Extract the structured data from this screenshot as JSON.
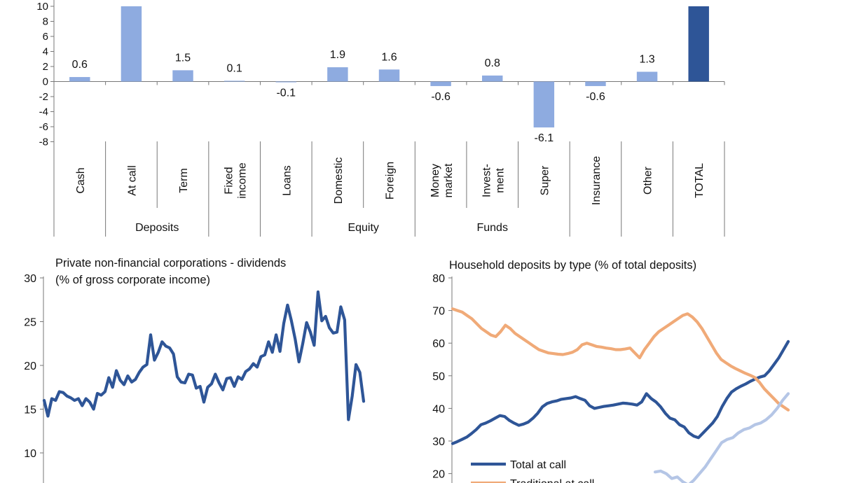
{
  "chart_data": [
    {
      "type": "bar",
      "title": "",
      "yticks": [
        "10",
        "8",
        "6",
        "4",
        "2",
        "0",
        "-2",
        "-4",
        "-6",
        "-8"
      ],
      "ylim": [
        -8,
        10
      ],
      "categories": [
        "Cash",
        "At call",
        "Term",
        "Fixed income",
        "Loans",
        "Domestic",
        "Foreign",
        "Money market",
        "Invest-ment",
        "Super",
        "Insurance",
        "Other",
        "TOTAL"
      ],
      "values": [
        0.6,
        10.0,
        1.5,
        0.1,
        -0.1,
        1.9,
        1.6,
        -0.6,
        0.8,
        -6.1,
        -0.6,
        1.3,
        10.0
      ],
      "value_labels": [
        "0.6",
        "",
        "1.5",
        "0.1",
        "-0.1",
        "1.9",
        "1.6",
        "-0.6",
        "0.8",
        "-6.1",
        "-0.6",
        "1.3",
        ""
      ],
      "groups": [
        {
          "name": "Deposits",
          "from": 1,
          "to": 2
        },
        {
          "name": "Equity",
          "from": 5,
          "to": 6
        },
        {
          "name": "Funds",
          "from": 7,
          "to": 9
        }
      ],
      "colors": {
        "bar": "#8eabe0",
        "total": "#2e5597"
      }
    },
    {
      "type": "line",
      "title": "Private non-financial corporations - dividends",
      "subtitle": "(% of gross corporate income)",
      "yticks": [
        "30",
        "25",
        "20",
        "15",
        "10"
      ],
      "ylim": [
        8,
        30
      ],
      "series": [
        {
          "color": "#2e5597",
          "values": [
            16.0,
            14.2,
            16.2,
            16.0,
            17.0,
            16.9,
            16.5,
            16.3,
            16.0,
            16.2,
            15.4,
            16.2,
            15.8,
            15.0,
            16.8,
            16.6,
            17.0,
            18.6,
            17.5,
            19.4,
            18.3,
            17.8,
            18.8,
            18.1,
            18.4,
            19.2,
            19.8,
            20.1,
            23.5,
            20.6,
            21.5,
            22.7,
            22.2,
            22.0,
            21.3,
            18.7,
            18.1,
            18.0,
            19.0,
            18.9,
            17.4,
            17.6,
            15.8,
            17.5,
            17.9,
            19.0,
            18.0,
            17.2,
            18.5,
            18.6,
            17.6,
            18.7,
            18.4,
            19.3,
            19.6,
            20.2,
            19.8,
            21.0,
            21.2,
            22.7,
            21.5,
            23.5,
            21.6,
            24.8,
            26.9,
            25.1,
            23.0,
            20.4,
            22.5,
            24.9,
            23.8,
            22.3,
            28.4,
            25.1,
            25.6,
            24.3,
            23.7,
            23.8,
            26.7,
            25.2,
            13.8,
            16.5,
            20.1,
            19.2,
            15.9
          ]
        }
      ]
    },
    {
      "type": "line",
      "title": "Household deposits by type (% of total deposits)",
      "yticks": [
        "80",
        "70",
        "60",
        "50",
        "40",
        "30",
        "20"
      ],
      "ylim": [
        18,
        80
      ],
      "series": [
        {
          "name": "Total at call",
          "color": "#2e5597",
          "values": [
            29.2,
            29.8,
            30.5,
            31.2,
            32.3,
            33.5,
            35.0,
            35.5,
            36.2,
            37.0,
            37.8,
            37.5,
            36.3,
            35.5,
            34.8,
            35.2,
            35.8,
            37.0,
            38.5,
            40.5,
            41.5,
            42.0,
            42.3,
            42.8,
            43.0,
            43.2,
            43.6,
            43.0,
            42.5,
            40.8,
            40.0,
            40.3,
            40.6,
            40.8,
            41.0,
            41.3,
            41.6,
            41.5,
            41.3,
            41.0,
            42.0,
            44.5,
            43.0,
            42.0,
            40.5,
            38.5,
            37.0,
            36.5,
            35.0,
            34.3,
            32.5,
            31.5,
            31.0,
            32.5,
            34.0,
            35.5,
            37.5,
            40.5,
            43.0,
            45.0,
            46.0,
            46.8,
            47.5,
            48.3,
            49.0,
            49.6,
            50.0,
            51.5,
            53.5,
            55.5,
            58.0,
            60.5
          ]
        },
        {
          "name": "Traditional at call",
          "color": "#f0aa78",
          "values": [
            70.5,
            70.0,
            69.5,
            68.5,
            67.5,
            66.0,
            64.5,
            63.5,
            62.5,
            62.0,
            63.5,
            65.5,
            64.5,
            63.0,
            62.0,
            61.0,
            60.0,
            59.0,
            58.0,
            57.5,
            57.0,
            56.8,
            56.6,
            56.5,
            56.8,
            57.2,
            58.0,
            59.5,
            60.0,
            59.5,
            59.0,
            58.8,
            58.5,
            58.3,
            58.0,
            58.0,
            58.2,
            58.5,
            57.0,
            55.5,
            58.0,
            60.0,
            62.0,
            63.5,
            64.5,
            65.5,
            66.5,
            67.5,
            68.5,
            69.0,
            68.0,
            66.5,
            64.5,
            62.0,
            59.5,
            57.0,
            55.0,
            54.0,
            53.0,
            52.2,
            51.5,
            50.8,
            50.2,
            49.5,
            48.0,
            46.0,
            44.5,
            43.0,
            41.5,
            40.5,
            39.5
          ]
        },
        {
          "color": "#b5c6e6",
          "values": [
            20.5,
            20.8,
            20.0,
            18.5,
            19.0,
            17.5,
            16.5,
            18.0,
            20.0,
            22.0,
            24.5,
            27.0,
            29.5,
            30.5,
            31.0,
            32.5,
            33.5,
            34.0,
            35.0,
            35.5,
            36.5,
            38.0,
            40.0,
            42.5,
            44.5
          ]
        }
      ],
      "legend": [
        "Total at call",
        "Traditional at call"
      ],
      "legend_placement": "bottom-left"
    }
  ]
}
